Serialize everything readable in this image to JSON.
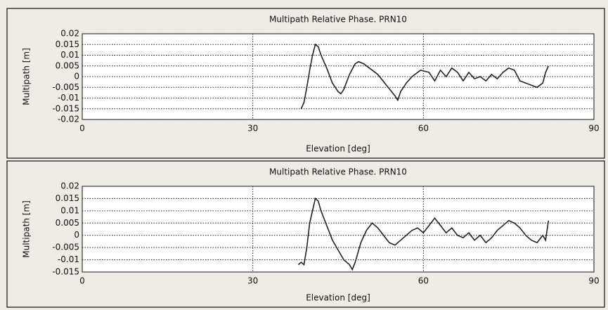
{
  "chart_data": [
    {
      "type": "line",
      "title": "Multipath Relative Phase.  PRN10",
      "xlabel": "Elevation [deg]",
      "ylabel": "Multipath [m]",
      "xlim": [
        0,
        90
      ],
      "xticks": [
        0,
        30,
        60,
        90
      ],
      "ylim": [
        -0.02,
        0.02
      ],
      "yticks": [
        0.02,
        0.015,
        0.01,
        0.005,
        0,
        -0.005,
        -0.01,
        -0.015,
        -0.02
      ],
      "grid": true,
      "color": "#222222",
      "x": [
        38.5,
        39,
        39.5,
        40,
        40.5,
        41,
        41.5,
        42,
        43,
        44,
        45,
        45.5,
        46,
        47,
        48,
        48.6,
        49.5,
        50.5,
        52,
        53.5,
        55,
        55.5,
        56,
        57,
        58,
        59.5,
        61,
        62,
        63,
        64,
        65,
        66,
        67,
        68,
        69,
        70,
        71,
        72,
        73,
        74,
        75,
        76,
        77,
        78,
        79,
        80,
        81,
        81.5,
        82
      ],
      "values": [
        -0.015,
        -0.012,
        -0.005,
        0.003,
        0.01,
        0.015,
        0.014,
        0.01,
        0.004,
        -0.003,
        -0.007,
        -0.008,
        -0.006,
        0.001,
        0.006,
        0.007,
        0.006,
        0.004,
        0.001,
        -0.004,
        -0.009,
        -0.011,
        -0.007,
        -0.003,
        0,
        0.003,
        0.002,
        -0.002,
        0.003,
        0,
        0.004,
        0.002,
        -0.002,
        0.002,
        -0.001,
        0,
        -0.002,
        0.001,
        -0.001,
        0.002,
        0.004,
        0.003,
        -0.002,
        -0.003,
        -0.004,
        -0.005,
        -0.003,
        0.002,
        0.005
      ]
    },
    {
      "type": "line",
      "title": "Multipath Relative Phase.  PRN10",
      "xlabel": "Elevation [deg]",
      "ylabel": "Multipath [m]",
      "xlim": [
        0,
        90
      ],
      "xticks": [
        0,
        30,
        60,
        90
      ],
      "ylim": [
        -0.015,
        0.02
      ],
      "yticks": [
        0.02,
        0.015,
        0.01,
        0.005,
        0,
        -0.005,
        -0.01,
        -0.015
      ],
      "grid": true,
      "color": "#222222",
      "x": [
        38,
        38.5,
        39,
        39.5,
        40,
        41,
        41.5,
        42,
        43,
        44,
        45,
        46,
        47,
        47.5,
        48,
        49,
        50,
        51,
        52,
        53,
        54,
        55,
        56,
        57,
        58,
        59,
        60,
        61,
        62,
        63,
        64,
        65,
        66,
        67,
        68,
        69,
        70,
        71,
        72,
        73,
        74,
        75,
        76,
        77,
        78,
        79,
        80,
        81,
        81.5,
        82
      ],
      "values": [
        -0.012,
        -0.011,
        -0.012,
        -0.005,
        0.005,
        0.015,
        0.014,
        0.01,
        0.004,
        -0.002,
        -0.006,
        -0.01,
        -0.012,
        -0.014,
        -0.011,
        -0.003,
        0.002,
        0.005,
        0.003,
        0,
        -0.003,
        -0.004,
        -0.002,
        0,
        0.002,
        0.003,
        0.001,
        0.004,
        0.007,
        0.004,
        0.001,
        0.003,
        0,
        -0.001,
        0.001,
        -0.002,
        0,
        -0.003,
        -0.001,
        0.002,
        0.004,
        0.006,
        0.005,
        0.003,
        0,
        -0.002,
        -0.003,
        0,
        -0.002,
        0.006
      ]
    }
  ]
}
